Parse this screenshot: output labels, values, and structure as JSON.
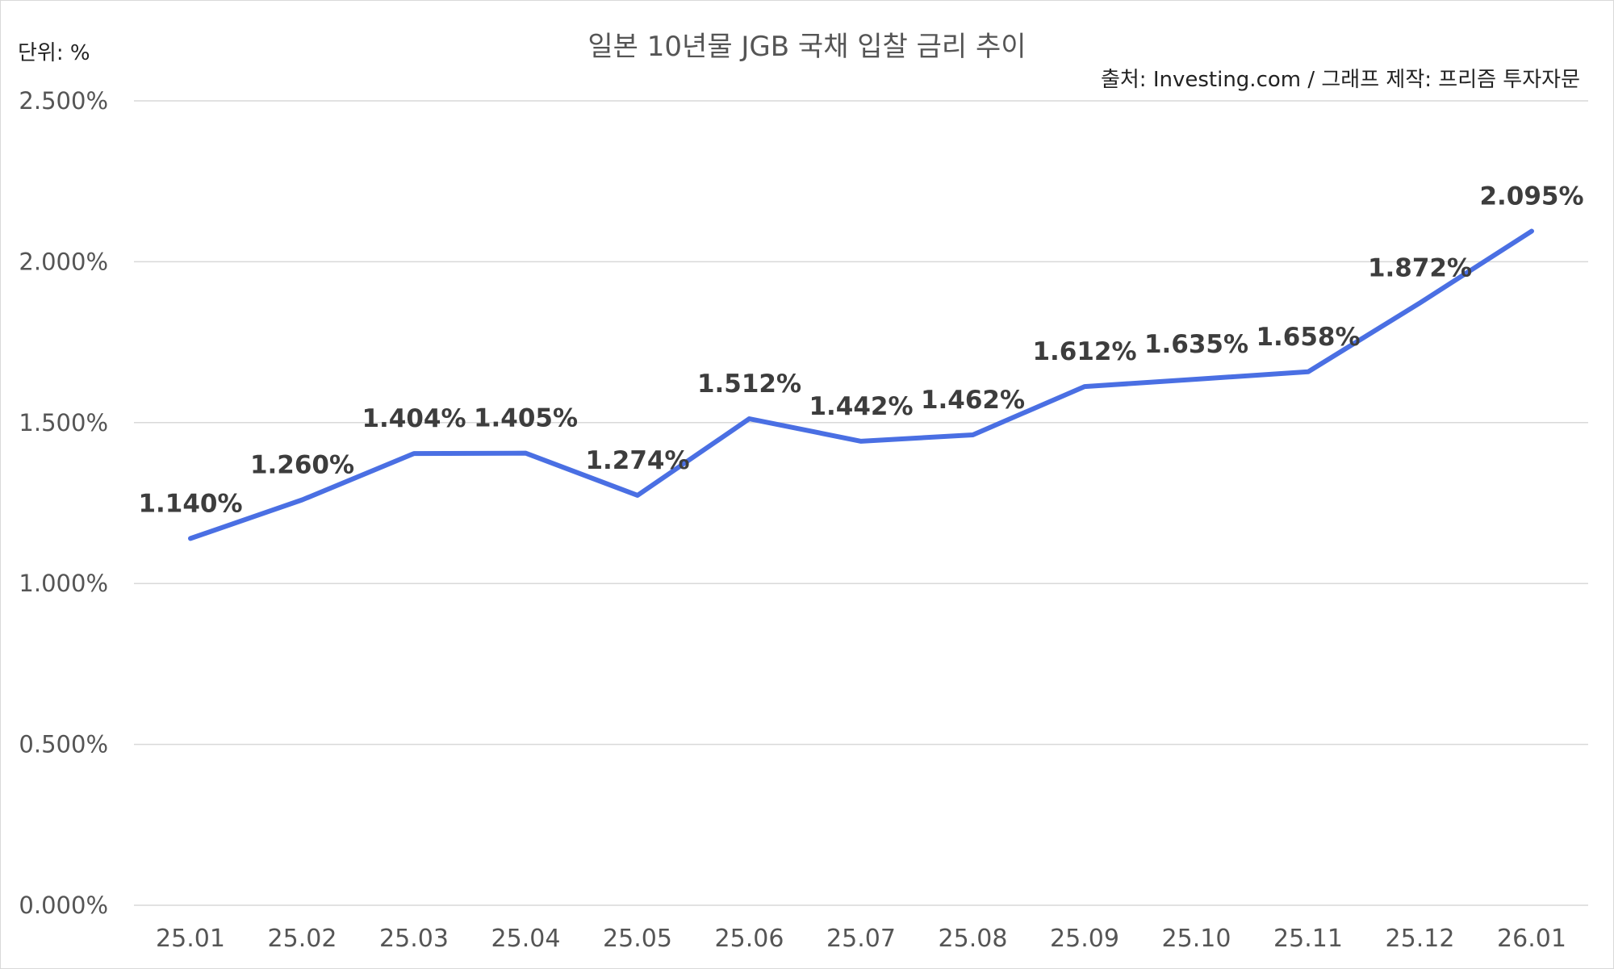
{
  "chart_data": {
    "type": "line",
    "title": "일본 10년물 JGB 국채 입찰 금리 추이",
    "unit_label": "단위: %",
    "source_note": "출처: Investing.com / 그래프 제작: 프리즘 투자자문",
    "categories": [
      "25.01",
      "25.02",
      "25.03",
      "25.04",
      "25.05",
      "25.06",
      "25.07",
      "25.08",
      "25.09",
      "25.10",
      "25.11",
      "25.12",
      "26.01"
    ],
    "values": [
      1.14,
      1.26,
      1.404,
      1.405,
      1.274,
      1.512,
      1.442,
      1.462,
      1.612,
      1.635,
      1.658,
      1.872,
      2.095
    ],
    "data_labels": [
      "1.140%",
      "1.260%",
      "1.404%",
      "1.405%",
      "1.274%",
      "1.512%",
      "1.442%",
      "1.462%",
      "1.612%",
      "1.635%",
      "1.658%",
      "1.872%",
      "2.095%"
    ],
    "yticks": [
      0,
      0.5,
      1.0,
      1.5,
      2.0,
      2.5
    ],
    "ytick_labels": [
      "0.000%",
      "0.500%",
      "1.000%",
      "1.500%",
      "2.000%",
      "2.500%"
    ],
    "ylim": [
      0,
      2.5
    ],
    "grid": "horizontal",
    "legend": "none",
    "line_color": "#4a6fe3",
    "grid_color": "#d9d9d9"
  }
}
